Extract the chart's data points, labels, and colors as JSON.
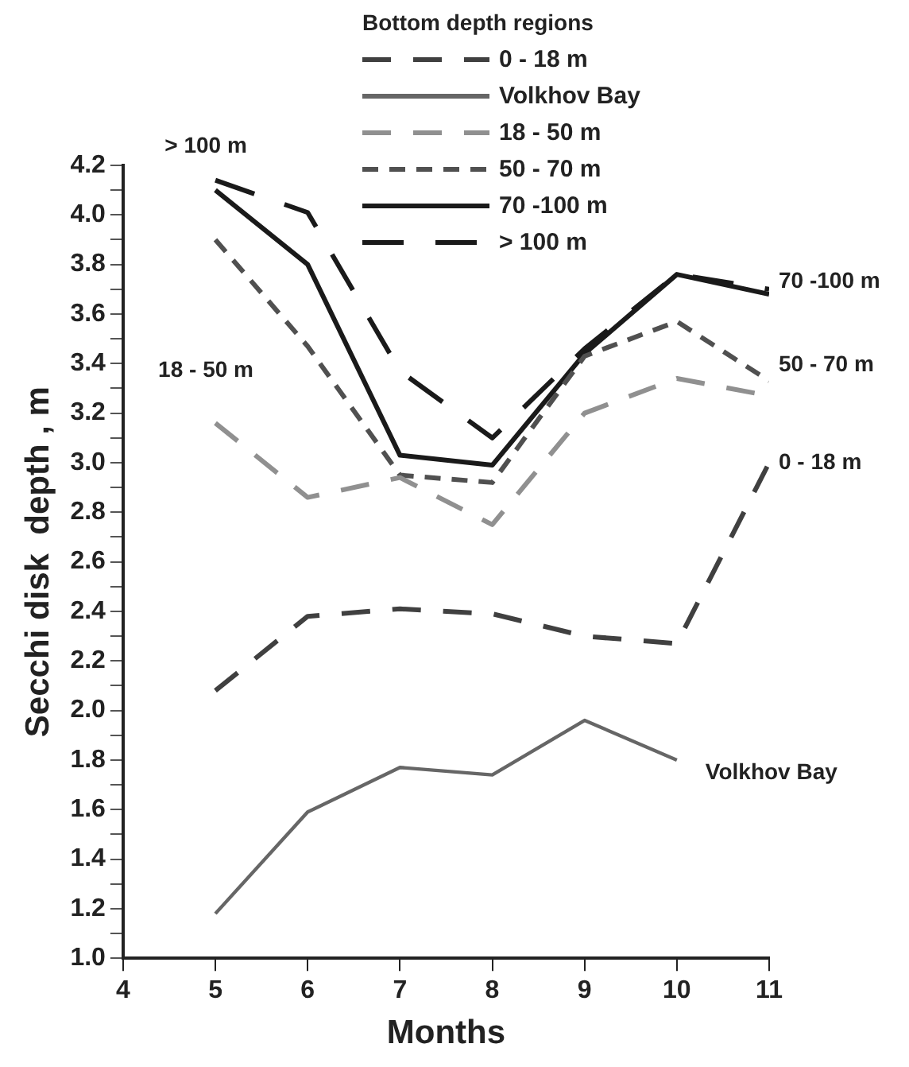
{
  "chart_data": {
    "type": "line",
    "xlabel": "Months",
    "ylabel": "Secchi disk  depth , m",
    "legend_title": "Bottom depth regions",
    "legend": "top right",
    "xlim": [
      4,
      11
    ],
    "xticks": [
      4,
      5,
      6,
      7,
      8,
      9,
      10,
      11
    ],
    "ylim": [
      1.0,
      4.2
    ],
    "yticks": [
      {
        "value": 1.0,
        "label": "1.0"
      },
      {
        "value": 1.1,
        "label": null
      },
      {
        "value": 1.2,
        "label": "1.2"
      },
      {
        "value": 1.3,
        "label": null
      },
      {
        "value": 1.4,
        "label": "1.4"
      },
      {
        "value": 1.5,
        "label": null
      },
      {
        "value": 1.6,
        "label": "1.6"
      },
      {
        "value": 1.7,
        "label": null
      },
      {
        "value": 1.8,
        "label": "1.8"
      },
      {
        "value": 1.9,
        "label": null
      },
      {
        "value": 2.0,
        "label": "2.0"
      },
      {
        "value": 2.1,
        "label": null
      },
      {
        "value": 2.2,
        "label": "2.2"
      },
      {
        "value": 2.3,
        "label": null
      },
      {
        "value": 2.4,
        "label": "2.4"
      },
      {
        "value": 2.5,
        "label": null
      },
      {
        "value": 2.6,
        "label": "2.6"
      },
      {
        "value": 2.7,
        "label": null
      },
      {
        "value": 2.8,
        "label": "2.8"
      },
      {
        "value": 2.9,
        "label": null
      },
      {
        "value": 3.0,
        "label": "3.0"
      },
      {
        "value": 3.1,
        "label": null
      },
      {
        "value": 3.2,
        "label": "3.2"
      },
      {
        "value": 3.3,
        "label": null
      },
      {
        "value": 3.4,
        "label": "3.4"
      },
      {
        "value": 3.5,
        "label": null
      },
      {
        "value": 3.6,
        "label": "3.6"
      },
      {
        "value": 3.7,
        "label": null
      },
      {
        "value": 3.8,
        "label": "3.8"
      },
      {
        "value": 3.9,
        "label": null
      },
      {
        "value": 4.0,
        "label": "4.0"
      },
      {
        "value": 4.1,
        "label": null
      },
      {
        "value": 4.2,
        "label": "4.2"
      }
    ],
    "marker": "none",
    "series": [
      {
        "name": "0 - 18 m",
        "color": "#404040",
        "line_style": "dashed",
        "x": [
          5,
          6,
          7,
          8,
          9,
          10,
          11
        ],
        "values": [
          2.08,
          2.38,
          2.41,
          2.39,
          2.3,
          2.27,
          3.0
        ]
      },
      {
        "name": "Volkhov Bay",
        "color": "#666666",
        "line_style": "solid",
        "x": [
          5,
          6,
          7,
          8,
          9,
          10
        ],
        "values": [
          1.18,
          1.59,
          1.77,
          1.74,
          1.96,
          1.8
        ]
      },
      {
        "name": "18 - 50 m",
        "color": "#909090",
        "line_style": "dashed",
        "x": [
          5,
          6,
          7,
          8,
          9,
          10,
          11
        ],
        "values": [
          3.16,
          2.86,
          2.94,
          2.75,
          3.2,
          3.34,
          3.27
        ]
      },
      {
        "name": "50 - 70 m",
        "color": "#505050",
        "line_style": "dashed",
        "x": [
          5,
          6,
          7,
          8,
          9,
          10,
          11
        ],
        "values": [
          3.9,
          3.47,
          2.95,
          2.92,
          3.43,
          3.57,
          3.33
        ]
      },
      {
        "name": "70 -100 m",
        "color": "#1a1a1a",
        "line_style": "solid",
        "x": [
          5,
          6,
          7,
          8,
          9,
          10,
          11
        ],
        "values": [
          4.1,
          3.8,
          3.03,
          2.99,
          3.44,
          3.76,
          3.68
        ]
      },
      {
        "name": "> 100 m",
        "color": "#1a1a1a",
        "line_style": "dashed",
        "x": [
          5,
          6,
          7,
          8,
          9,
          10,
          11
        ],
        "values": [
          4.14,
          4.01,
          3.37,
          3.1,
          3.46,
          3.76,
          3.7
        ]
      }
    ]
  }
}
